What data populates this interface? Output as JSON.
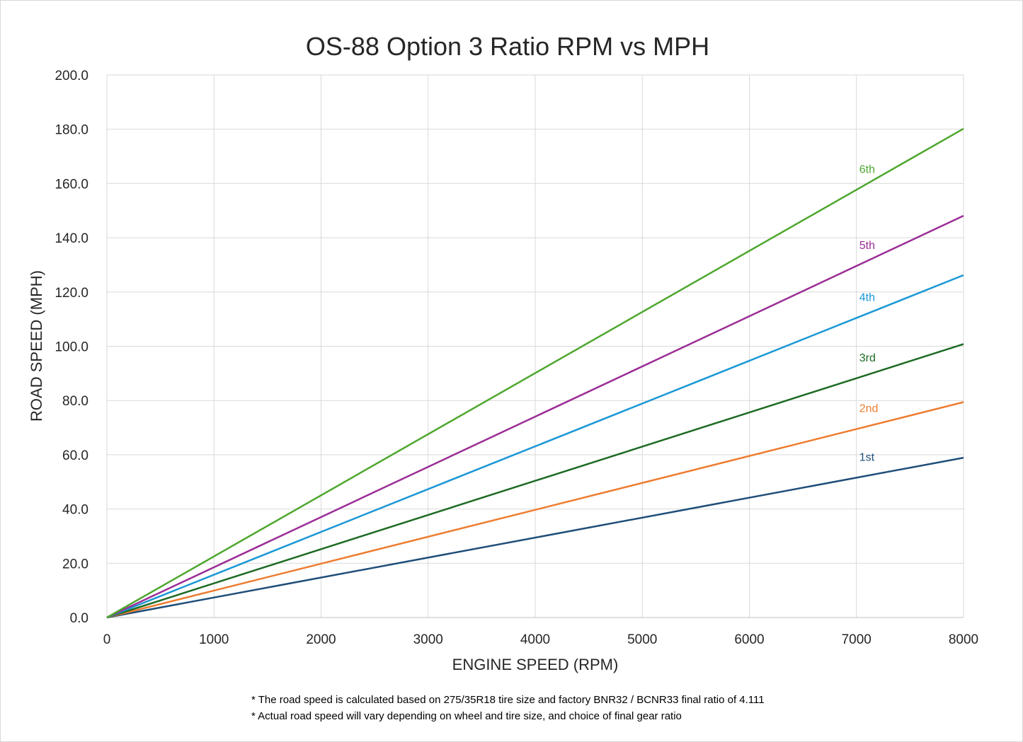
{
  "chart_data": {
    "type": "line",
    "title": "OS-88 Option 3 Ratio RPM vs MPH",
    "xlabel": "ENGINE SPEED (RPM)",
    "ylabel": "ROAD SPEED (MPH)",
    "xlim": [
      0,
      8000
    ],
    "ylim": [
      0,
      200
    ],
    "x_ticks": [
      "0",
      "1000",
      "2000",
      "3000",
      "4000",
      "5000",
      "6000",
      "7000",
      "8000"
    ],
    "y_ticks": [
      "0.0",
      "20.0",
      "40.0",
      "60.0",
      "80.0",
      "100.0",
      "120.0",
      "140.0",
      "160.0",
      "180.0",
      "200.0"
    ],
    "grid": true,
    "series": [
      {
        "name": "1st",
        "color": "#1f4e79",
        "x": [
          0,
          8000
        ],
        "values": [
          0,
          58.9
        ]
      },
      {
        "name": "2nd",
        "color": "#ed7d31",
        "x": [
          0,
          8000
        ],
        "values": [
          0,
          79.4
        ]
      },
      {
        "name": "3rd",
        "color": "#1e6b25",
        "x": [
          0,
          8000
        ],
        "values": [
          0,
          100.8
        ]
      },
      {
        "name": "4th",
        "color": "#1a97d5",
        "x": [
          0,
          8000
        ],
        "values": [
          0,
          126.2
        ]
      },
      {
        "name": "5th",
        "color": "#9b2d96",
        "x": [
          0,
          8000
        ],
        "values": [
          0,
          148.1
        ]
      },
      {
        "name": "6th",
        "color": "#4ea72e",
        "x": [
          0,
          8000
        ],
        "values": [
          0,
          180.2
        ]
      }
    ],
    "notes": [
      "* The road speed is calculated based on 275/35R18 tire size and factory BNR32 / BCNR33 final ratio of 4.111",
      "* Actual road speed will vary depending on wheel and tire size, and choice of final gear ratio"
    ]
  }
}
